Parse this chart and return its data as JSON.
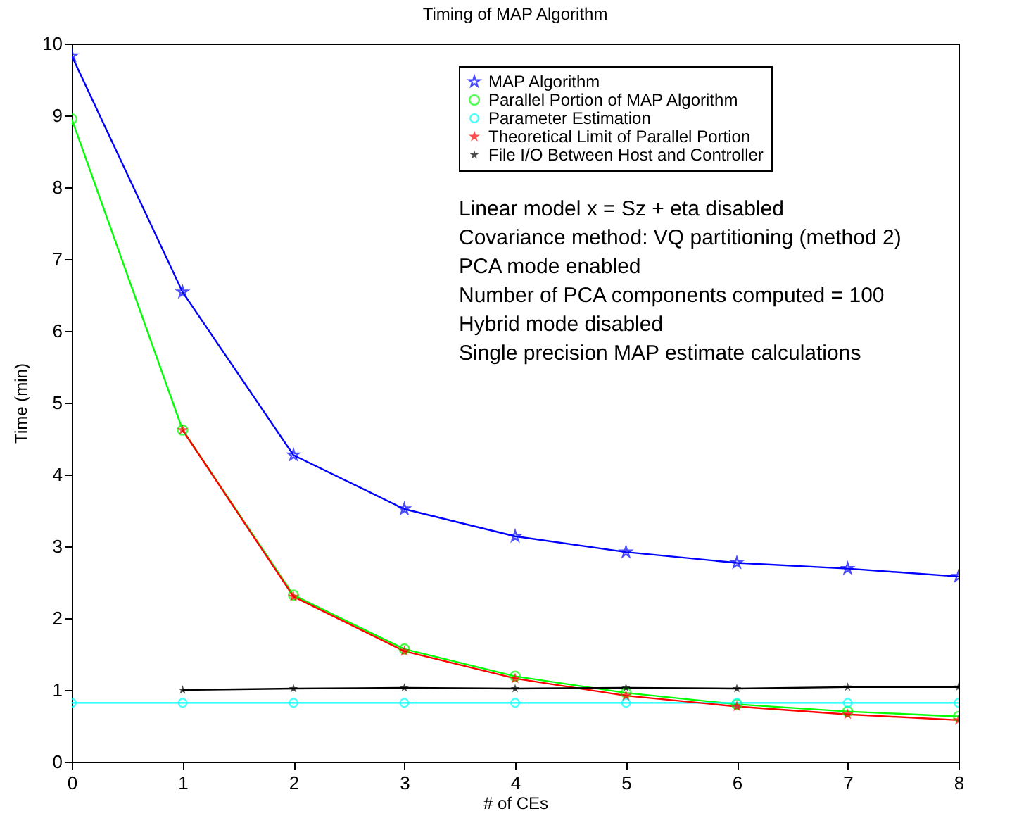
{
  "chart_data": {
    "type": "line",
    "title": "Timing of MAP Algorithm",
    "xlabel": "# of CEs",
    "ylabel": "Time (min)",
    "x": [
      0,
      1,
      2,
      3,
      4,
      5,
      6,
      7,
      8
    ],
    "series": [
      {
        "name": "MAP Algorithm",
        "color": "#0000ff",
        "marker": "star",
        "values": [
          9.83,
          6.54,
          4.27,
          3.52,
          3.14,
          2.92,
          2.77,
          2.69,
          2.58
        ]
      },
      {
        "name": "Parallel Portion of MAP Algorithm",
        "color": "#00ff00",
        "marker": "circle",
        "values": [
          8.95,
          4.62,
          2.32,
          1.57,
          1.19,
          0.96,
          0.8,
          0.7,
          0.63
        ]
      },
      {
        "name": "Parameter Estimation",
        "color": "#00ffff",
        "marker": "circle",
        "values": [
          0.82,
          0.82,
          0.82,
          0.82,
          0.82,
          0.82,
          0.82,
          0.82,
          0.82
        ]
      },
      {
        "name": "Theoretical Limit of Parallel Portion",
        "color": "#ff0000",
        "marker": "star",
        "values": [
          null,
          4.62,
          2.3,
          1.54,
          1.16,
          0.92,
          0.77,
          0.66,
          0.58
        ]
      },
      {
        "name": "File I/O Between Host and Controller",
        "color": "#000000",
        "marker": "star",
        "values": [
          null,
          1.0,
          1.02,
          1.03,
          1.02,
          1.03,
          1.02,
          1.04,
          1.04
        ]
      }
    ],
    "annotations": [
      "Linear model x = Sz + eta disabled",
      "Covariance method: VQ partitioning (method 2)",
      "PCA mode enabled",
      "Number of PCA components computed = 100",
      "Hybrid mode disabled",
      "Single precision MAP estimate calculations"
    ],
    "xlim": [
      0,
      8
    ],
    "xticks": [
      0,
      1,
      2,
      3,
      4,
      5,
      6,
      7,
      8
    ],
    "ylim": [
      0,
      10
    ],
    "yticks": [
      0,
      1,
      2,
      3,
      4,
      5,
      6,
      7,
      8,
      9,
      10
    ],
    "grid": false,
    "legend": "top right",
    "line_style": "solid"
  }
}
